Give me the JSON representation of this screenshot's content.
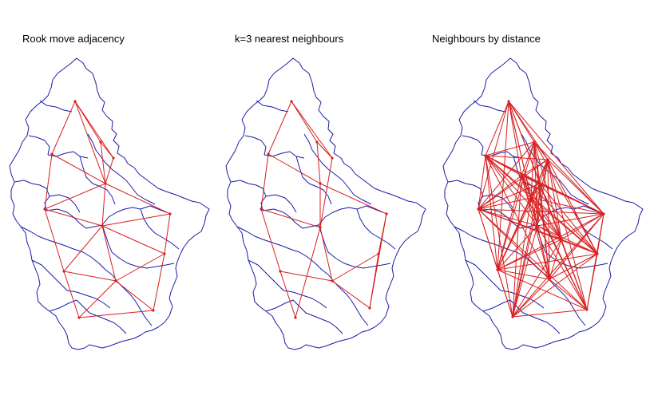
{
  "panels": [
    {
      "id": "rook",
      "title": "Rook move adjacency"
    },
    {
      "id": "knn",
      "title": "k=3 nearest neighbours"
    },
    {
      "id": "dist",
      "title": "Neighbours by distance"
    }
  ],
  "colors": {
    "boundary": "#1a1aa8",
    "links": "#d62020",
    "background": "#ffffff"
  }
}
